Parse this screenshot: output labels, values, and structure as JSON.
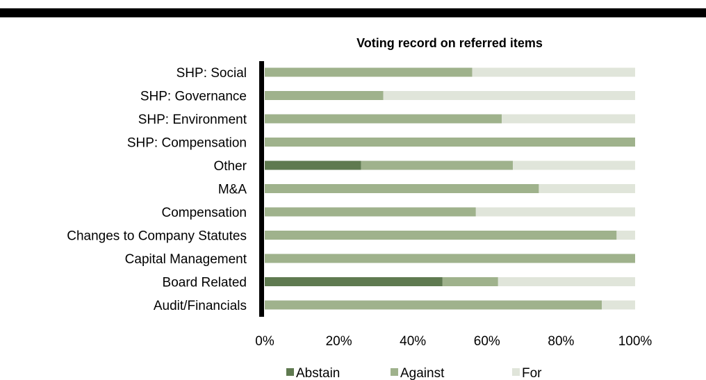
{
  "chart_data": {
    "type": "bar",
    "orientation": "horizontal",
    "stacked": true,
    "title": "Voting record on referred items",
    "xlabel": "",
    "ylabel": "",
    "xlim": [
      0,
      100
    ],
    "x_ticks": [
      "0%",
      "20%",
      "40%",
      "60%",
      "80%",
      "100%"
    ],
    "grid": false,
    "legend_position": "bottom",
    "categories": [
      "SHP: Social",
      "SHP: Governance",
      "SHP: Environment",
      "SHP: Compensation",
      "Other",
      "M&A",
      "Compensation",
      "Changes to Company Statutes",
      "Capital Management",
      "Board Related",
      "Audit/Financials"
    ],
    "series": [
      {
        "name": "Abstain",
        "color": "#5f7a50",
        "values": [
          0,
          0,
          0,
          0,
          26,
          0,
          0,
          0,
          0,
          48,
          0
        ]
      },
      {
        "name": "Against",
        "color": "#9fb28c",
        "values": [
          56,
          32,
          64,
          100,
          41,
          74,
          57,
          95,
          100,
          15,
          91
        ]
      },
      {
        "name": "For",
        "color": "#e0e5da",
        "values": [
          44,
          68,
          36,
          0,
          33,
          26,
          43,
          5,
          0,
          37,
          9
        ]
      }
    ]
  }
}
